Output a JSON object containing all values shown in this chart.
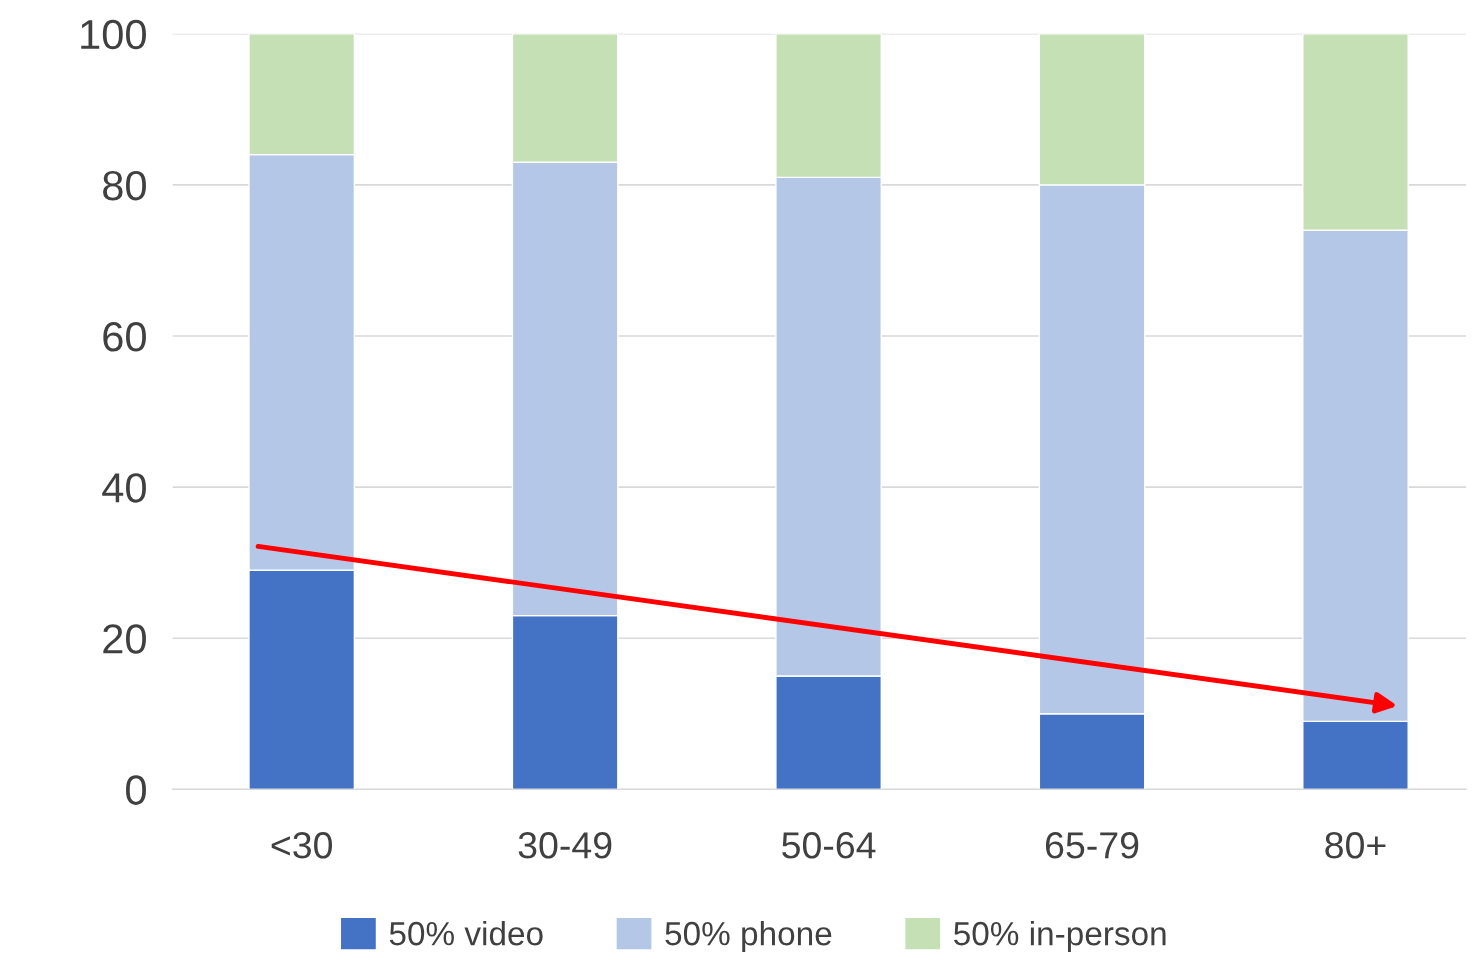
{
  "chart_data": {
    "type": "bar",
    "stacked": true,
    "categories": [
      "<30",
      "30-49",
      "50-64",
      "65-79",
      "80+"
    ],
    "series": [
      {
        "name": "50% video",
        "color": "#4472c4",
        "values": [
          29,
          23,
          15,
          10,
          9
        ]
      },
      {
        "name": "50% phone",
        "color": "#b4c7e7",
        "values": [
          55,
          60,
          66,
          70,
          65
        ]
      },
      {
        "name": "50% in-person",
        "color": "#c5e0b4",
        "values": [
          16,
          17,
          19,
          20,
          26
        ]
      }
    ],
    "ylim": [
      0,
      100
    ],
    "yticks": [
      0,
      20,
      40,
      60,
      80,
      100
    ],
    "grid": "y",
    "legend": "bottom"
  }
}
